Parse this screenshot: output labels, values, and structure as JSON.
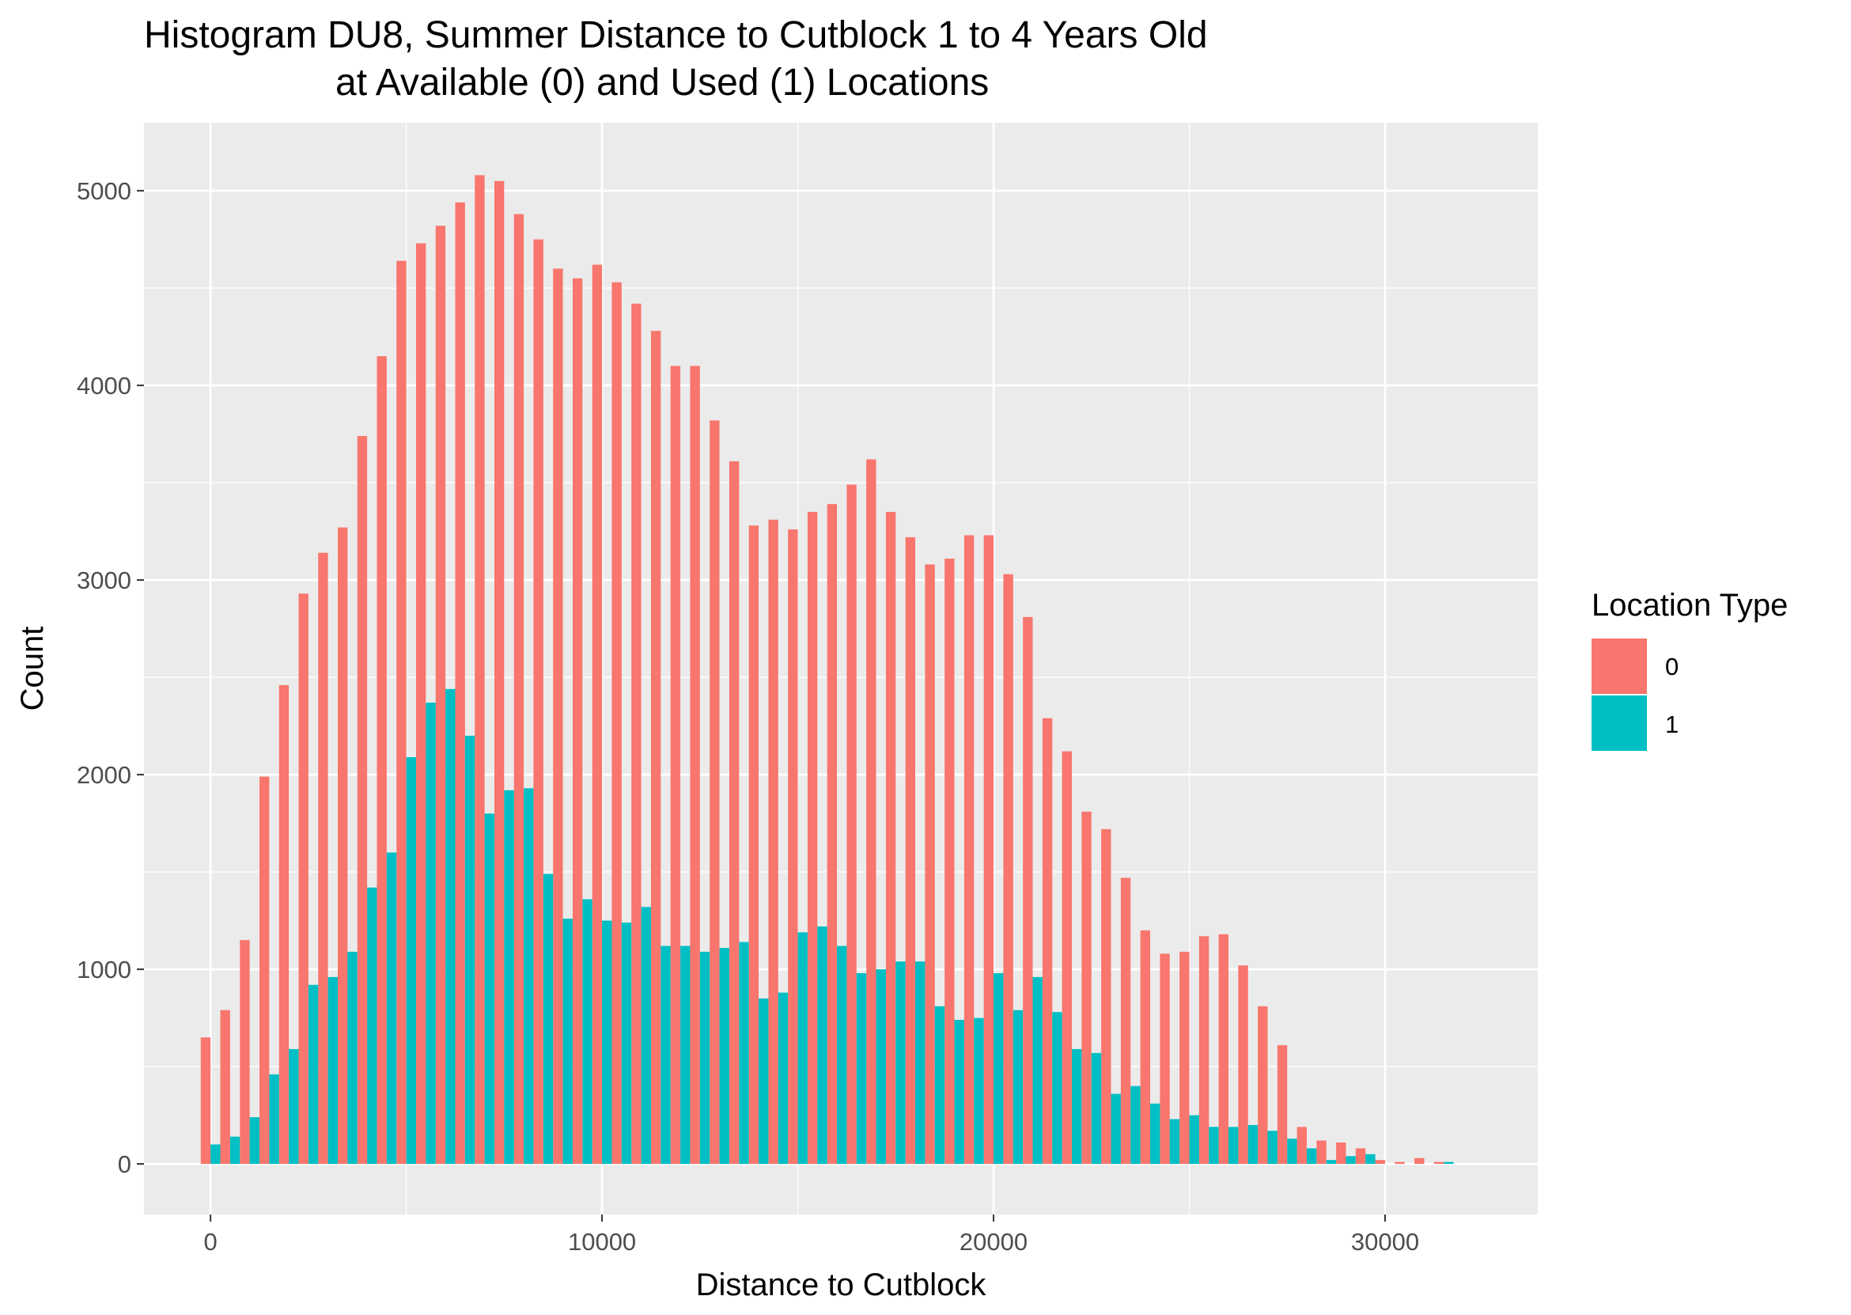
{
  "chart_data": {
    "type": "bar",
    "title": "Histogram DU8, Summer Distance to Cutblock 1 to 4 Years Old\nat Available (0) and Used (1) Locations",
    "title_lines": [
      "Histogram DU8, Summer Distance to Cutblock 1 to 4 Years Old",
      "at Available (0) and Used (1) Locations"
    ],
    "xlabel": "Distance to Cutblock",
    "ylabel": "Count",
    "xlim": [
      -1700,
      33900
    ],
    "ylim": [
      -260,
      5350
    ],
    "x_ticks": [
      0,
      10000,
      20000,
      30000
    ],
    "x_tick_labels": [
      "0",
      "10000",
      "20000",
      "30000"
    ],
    "y_ticks": [
      0,
      1000,
      2000,
      3000,
      4000,
      5000
    ],
    "y_tick_labels": [
      "0",
      "1000",
      "2000",
      "3000",
      "4000",
      "5000"
    ],
    "bin_width": 500,
    "grid": true,
    "legend": {
      "title": "Location Type",
      "position": "right",
      "entries": [
        {
          "label": "0",
          "color": "#F8766D"
        },
        {
          "label": "1",
          "color": "#00BFC4"
        }
      ]
    },
    "x": [
      0,
      500,
      1000,
      1500,
      2000,
      2500,
      3000,
      3500,
      4000,
      4500,
      5000,
      5500,
      6000,
      6500,
      7000,
      7500,
      8000,
      8500,
      9000,
      9500,
      10000,
      10500,
      11000,
      11500,
      12000,
      12500,
      13000,
      13500,
      14000,
      14500,
      15000,
      15500,
      16000,
      16500,
      17000,
      17500,
      18000,
      18500,
      19000,
      19500,
      20000,
      20500,
      21000,
      21500,
      22000,
      22500,
      23000,
      23500,
      24000,
      24500,
      25000,
      25500,
      26000,
      26500,
      27000,
      27500,
      28000,
      28500,
      29000,
      29500,
      30000,
      30500,
      31000,
      31500,
      32000
    ],
    "series": [
      {
        "name": "0",
        "color": "#F8766D",
        "values": [
          650,
          790,
          1150,
          1990,
          2460,
          2930,
          3140,
          3270,
          3740,
          4150,
          4640,
          4730,
          4820,
          4940,
          5080,
          5050,
          4880,
          4750,
          4600,
          4550,
          4620,
          4530,
          4420,
          4280,
          4100,
          4100,
          3820,
          3610,
          3280,
          3310,
          3260,
          3350,
          3390,
          3490,
          3620,
          3350,
          3220,
          3080,
          3110,
          3230,
          3230,
          3030,
          2810,
          2290,
          2120,
          1810,
          1720,
          1470,
          1200,
          1080,
          1090,
          1170,
          1180,
          1020,
          810,
          610,
          190,
          120,
          110,
          80,
          20,
          10,
          30,
          10,
          0
        ]
      },
      {
        "name": "1",
        "color": "#00BFC4",
        "values": [
          100,
          140,
          240,
          460,
          590,
          920,
          960,
          1090,
          1420,
          1600,
          2090,
          2370,
          2440,
          2200,
          1800,
          1920,
          1930,
          1490,
          1260,
          1360,
          1250,
          1240,
          1320,
          1120,
          1120,
          1090,
          1110,
          1140,
          850,
          880,
          1190,
          1220,
          1120,
          980,
          1000,
          1040,
          1040,
          810,
          740,
          750,
          980,
          790,
          960,
          780,
          590,
          570,
          360,
          400,
          310,
          230,
          250,
          190,
          190,
          200,
          170,
          130,
          80,
          20,
          40,
          50,
          0,
          0,
          0,
          10,
          0
        ]
      }
    ]
  }
}
